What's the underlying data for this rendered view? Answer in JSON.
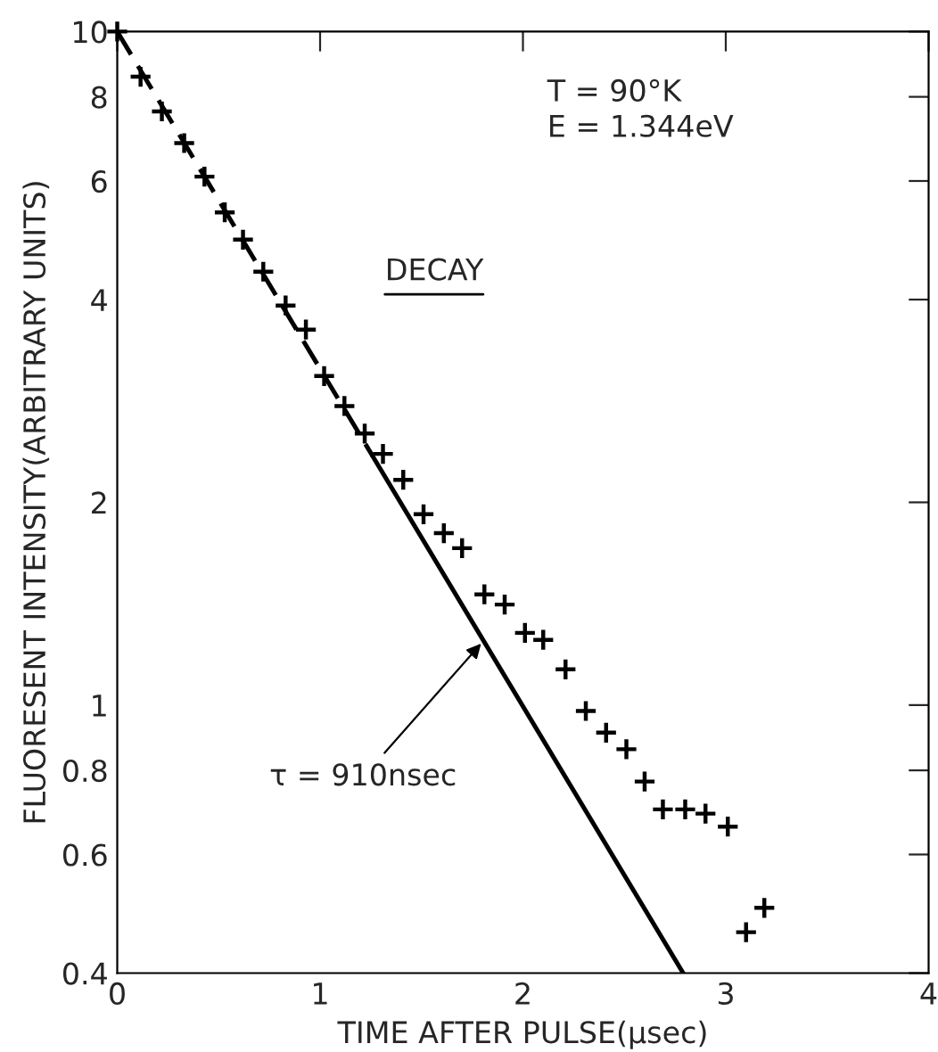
{
  "chart_data": {
    "type": "scatter",
    "xlabel": "TIME AFTER PULSE(μsec)",
    "ylabel": "FLUORESENT INTENSITY(ARBITRARY UNITS)",
    "log": "y",
    "xlim": [
      0,
      4
    ],
    "ylim": [
      0.4,
      10
    ],
    "xticks": [
      0,
      1,
      2,
      3,
      4
    ],
    "yticks": [
      0.4,
      0.6,
      0.8,
      1,
      2,
      4,
      6,
      8,
      10
    ],
    "grid": false,
    "series": [
      {
        "marker": "cross",
        "color": "#000000",
        "x": [
          0,
          0.115,
          0.22,
          0.33,
          0.43,
          0.53,
          0.62,
          0.72,
          0.83,
          0.93,
          1.02,
          1.12,
          1.22,
          1.31,
          1.41,
          1.51,
          1.61,
          1.7,
          1.81,
          1.91,
          2.01,
          2.1,
          2.21,
          2.31,
          2.41,
          2.51,
          2.6,
          2.69,
          2.8,
          2.9,
          3.01,
          3.1,
          3.19
        ],
        "values": [
          10,
          8.57,
          7.61,
          6.83,
          6.09,
          5.39,
          4.91,
          4.4,
          3.92,
          3.61,
          3.08,
          2.78,
          2.53,
          2.36,
          2.16,
          1.92,
          1.8,
          1.71,
          1.46,
          1.41,
          1.28,
          1.25,
          1.13,
          0.98,
          0.91,
          0.86,
          0.77,
          0.7,
          0.7,
          0.69,
          0.66,
          0.46,
          0.5
        ]
      },
      {
        "type": "line",
        "line_style": "dashed",
        "color": "#000000",
        "x": [
          0,
          1.26
        ],
        "values": [
          10,
          2.34
        ]
      },
      {
        "type": "line",
        "line_style": "solid",
        "color": "#000000",
        "x": [
          1.26,
          2.79
        ],
        "values": [
          2.34,
          0.4
        ]
      }
    ],
    "annotations": [
      "T = 90°K\nE = 1.344eV",
      "DECAY",
      {
        "text": "τ = 910nsec",
        "x": 1.81,
        "y": 1.25
      }
    ]
  }
}
